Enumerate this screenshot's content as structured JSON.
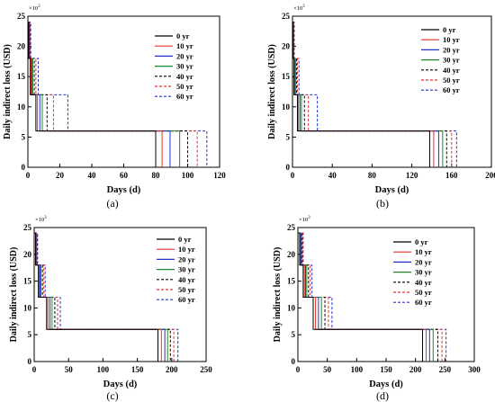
{
  "chart_data": [
    {
      "type": "line",
      "panel_label": "(a)",
      "ylabel": "Daily indirect loss (USD)",
      "xlabel": "Days (d)",
      "y_multiplier": "×10",
      "y_multiplier_exp": "3",
      "xlim": [
        0,
        120
      ],
      "ylim": [
        0,
        25
      ],
      "x_ticks": [
        0,
        20,
        40,
        60,
        80,
        100,
        120
      ],
      "y_ticks": [
        0,
        5,
        10,
        15,
        20,
        25
      ],
      "y_levels": [
        24,
        18,
        12,
        6
      ],
      "series": [
        {
          "name": "0 yr",
          "color": "#000000",
          "dash": false,
          "breakpoints": [
            0.5,
            1.5,
            5.0,
            80.0
          ]
        },
        {
          "name": "10 yr",
          "color": "#e8312a",
          "dash": false,
          "breakpoints": [
            0.7,
            2.0,
            6.0,
            84.0
          ]
        },
        {
          "name": "20 yr",
          "color": "#2233cc",
          "dash": false,
          "breakpoints": [
            0.9,
            2.5,
            7.5,
            89.0
          ]
        },
        {
          "name": "30 yr",
          "color": "#1e8a2a",
          "dash": false,
          "breakpoints": [
            1.1,
            3.0,
            9.0,
            95.0
          ]
        },
        {
          "name": "40 yr",
          "color": "#000000",
          "dash": true,
          "breakpoints": [
            1.3,
            4.0,
            12.0,
            100.0
          ]
        },
        {
          "name": "50 yr",
          "color": "#e8312a",
          "dash": true,
          "breakpoints": [
            1.5,
            5.0,
            16.0,
            106.0
          ]
        },
        {
          "name": "60 yr",
          "color": "#2233cc",
          "dash": true,
          "breakpoints": [
            1.8,
            6.5,
            25.0,
            112.0
          ]
        }
      ]
    },
    {
      "type": "line",
      "panel_label": "(b)",
      "ylabel": "Daily indirect loss (USD)",
      "xlabel": "Days (d)",
      "y_multiplier": "×10",
      "y_multiplier_exp": "3",
      "xlim": [
        0,
        200
      ],
      "ylim": [
        0,
        25
      ],
      "x_ticks": [
        0,
        40,
        80,
        120,
        160,
        200
      ],
      "y_ticks": [
        0,
        5,
        10,
        15,
        20,
        25
      ],
      "y_levels": [
        24,
        18,
        12,
        6
      ],
      "series": [
        {
          "name": "0 yr",
          "color": "#000000",
          "dash": false,
          "breakpoints": [
            0.5,
            1.5,
            5.0,
            138.0
          ]
        },
        {
          "name": "10 yr",
          "color": "#e8312a",
          "dash": false,
          "breakpoints": [
            0.7,
            2.0,
            6.0,
            142.0
          ]
        },
        {
          "name": "20 yr",
          "color": "#2233cc",
          "dash": false,
          "breakpoints": [
            0.9,
            2.5,
            7.5,
            147.0
          ]
        },
        {
          "name": "30 yr",
          "color": "#1e8a2a",
          "dash": false,
          "breakpoints": [
            1.1,
            3.0,
            9.0,
            151.0
          ]
        },
        {
          "name": "40 yr",
          "color": "#000000",
          "dash": true,
          "breakpoints": [
            1.3,
            4.0,
            12.0,
            155.0
          ]
        },
        {
          "name": "50 yr",
          "color": "#e8312a",
          "dash": true,
          "breakpoints": [
            1.5,
            5.0,
            16.0,
            160.0
          ]
        },
        {
          "name": "60 yr",
          "color": "#2233cc",
          "dash": true,
          "breakpoints": [
            1.8,
            6.5,
            25.0,
            165.0
          ]
        }
      ]
    },
    {
      "type": "line",
      "panel_label": "(c)",
      "ylabel": "Daily indirect loss (USD)",
      "xlabel": "Days (d)",
      "y_multiplier": "×10",
      "y_multiplier_exp": "3",
      "xlim": [
        0,
        250
      ],
      "ylim": [
        0,
        25
      ],
      "x_ticks": [
        0,
        50,
        100,
        150,
        200,
        250
      ],
      "y_ticks": [
        0,
        5,
        10,
        15,
        20,
        25
      ],
      "y_levels": [
        24,
        18,
        12,
        6
      ],
      "series": [
        {
          "name": "0 yr",
          "color": "#000000",
          "dash": false,
          "breakpoints": [
            2.0,
            6.0,
            18.0,
            180.0
          ]
        },
        {
          "name": "10 yr",
          "color": "#e8312a",
          "dash": false,
          "breakpoints": [
            2.5,
            7.0,
            20.0,
            185.0
          ]
        },
        {
          "name": "20 yr",
          "color": "#2233cc",
          "dash": false,
          "breakpoints": [
            3.0,
            8.5,
            23.0,
            190.0
          ]
        },
        {
          "name": "30 yr",
          "color": "#1e8a2a",
          "dash": false,
          "breakpoints": [
            3.5,
            10.0,
            26.0,
            194.0
          ]
        },
        {
          "name": "40 yr",
          "color": "#000000",
          "dash": true,
          "breakpoints": [
            4.0,
            12.0,
            30.0,
            198.0
          ]
        },
        {
          "name": "50 yr",
          "color": "#e8312a",
          "dash": true,
          "breakpoints": [
            4.5,
            14.0,
            34.0,
            203.0
          ]
        },
        {
          "name": "60 yr",
          "color": "#2233cc",
          "dash": true,
          "breakpoints": [
            5.0,
            16.0,
            38.0,
            209.0
          ]
        }
      ]
    },
    {
      "type": "line",
      "panel_label": "(d)",
      "ylabel": "Daily indirect loss (USD)",
      "xlabel": "Days (d)",
      "y_multiplier": "×10",
      "y_multiplier_exp": "3",
      "xlim": [
        0,
        300
      ],
      "ylim": [
        0,
        25
      ],
      "x_ticks": [
        0,
        50,
        100,
        150,
        200,
        250,
        300
      ],
      "y_ticks": [
        0,
        5,
        10,
        15,
        20,
        25
      ],
      "y_levels": [
        24,
        18,
        12,
        6
      ],
      "series": [
        {
          "name": "0 yr",
          "color": "#000000",
          "dash": false,
          "breakpoints": [
            3.0,
            9.0,
            26.0,
            212.0
          ]
        },
        {
          "name": "10 yr",
          "color": "#e8312a",
          "dash": false,
          "breakpoints": [
            4.0,
            11.0,
            30.0,
            218.0
          ]
        },
        {
          "name": "20 yr",
          "color": "#2233cc",
          "dash": false,
          "breakpoints": [
            5.0,
            13.0,
            35.0,
            224.0
          ]
        },
        {
          "name": "30 yr",
          "color": "#1e8a2a",
          "dash": false,
          "breakpoints": [
            6.0,
            15.0,
            40.0,
            230.0
          ]
        },
        {
          "name": "40 yr",
          "color": "#000000",
          "dash": true,
          "breakpoints": [
            7.0,
            18.0,
            46.0,
            238.0
          ]
        },
        {
          "name": "50 yr",
          "color": "#e8312a",
          "dash": true,
          "breakpoints": [
            8.0,
            21.0,
            52.0,
            245.0
          ]
        },
        {
          "name": "60 yr",
          "color": "#2233cc",
          "dash": true,
          "breakpoints": [
            9.0,
            24.0,
            58.0,
            252.0
          ]
        }
      ]
    }
  ]
}
